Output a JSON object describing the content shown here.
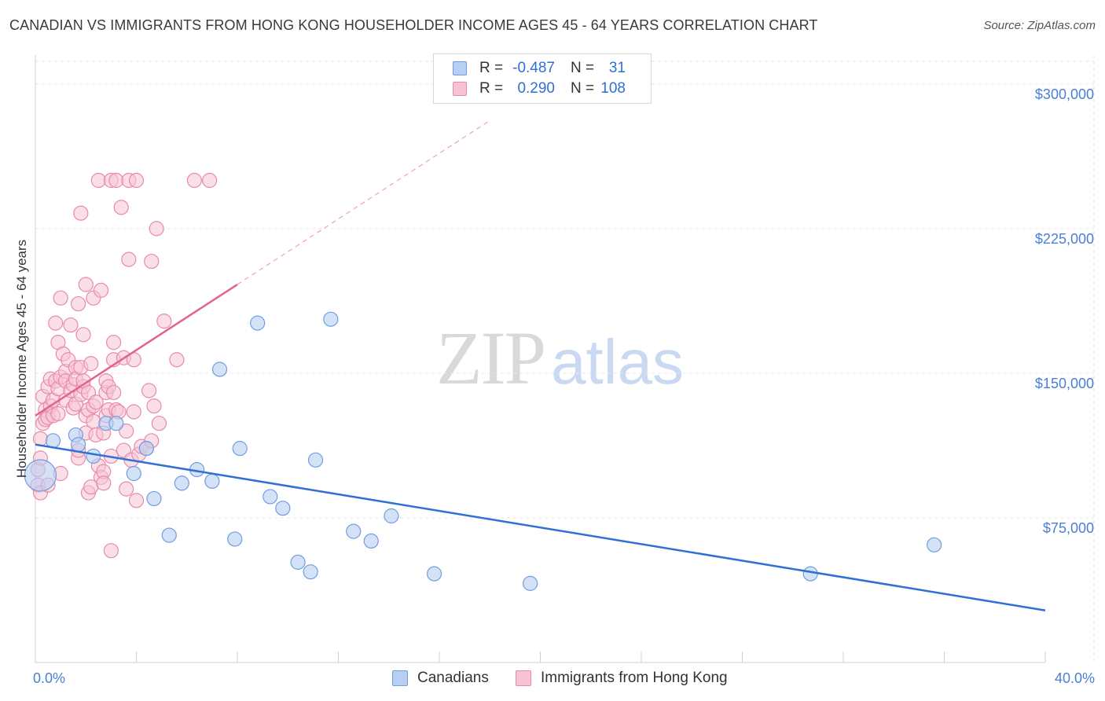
{
  "header": {
    "title": "CANADIAN VS IMMIGRANTS FROM HONG KONG HOUSEHOLDER INCOME AGES 45 - 64 YEARS CORRELATION CHART",
    "source": "Source: ZipAtlas.com"
  },
  "watermark": {
    "zip": "ZIP",
    "atlas": "atlas"
  },
  "legend": {
    "rows": [
      {
        "r_label": "R =",
        "r_value": "-0.487",
        "n_label": "N =",
        "n_value": "31"
      },
      {
        "r_label": "R =",
        "r_value": "0.290",
        "n_label": "N =",
        "n_value": "108"
      }
    ]
  },
  "bottom_legend": {
    "canadians": "Canadians",
    "hong_kong": "Immigrants from Hong Kong"
  },
  "colors": {
    "blue_fill": "#b7cff2",
    "blue_stroke": "#6f9de0",
    "blue_line": "#2f6fd6",
    "pink_fill": "#f6c4d4",
    "pink_stroke": "#e98aa9",
    "pink_line": "#e2638f",
    "grid": "#e6e6e6",
    "axis_text": "#4a7fd4"
  },
  "chart_data": {
    "type": "scatter",
    "title": "CANADIAN VS IMMIGRANTS FROM HONG KONG HOUSEHOLDER INCOME AGES 45 - 64 YEARS CORRELATION CHART",
    "xlabel": "",
    "ylabel": "Householder Income Ages 45 - 64 years",
    "xlim": [
      0,
      40
    ],
    "ylim": [
      0,
      315000
    ],
    "x_tick_labels": [
      "0.0%",
      "40.0%"
    ],
    "y_ticks": [
      75000,
      150000,
      225000,
      300000
    ],
    "y_tick_labels": [
      "$75,000",
      "$150,000",
      "$225,000",
      "$300,000"
    ],
    "grid": true,
    "legend_position": "top-center",
    "series": [
      {
        "name": "Canadians",
        "R": -0.487,
        "N": 31,
        "trend": {
          "x": [
            0,
            40
          ],
          "y": [
            113000,
            27000
          ]
        },
        "points": [
          {
            "x": 0.2,
            "y": 97000,
            "big": true
          },
          {
            "x": 0.7,
            "y": 115000
          },
          {
            "x": 1.6,
            "y": 118000
          },
          {
            "x": 1.7,
            "y": 113000
          },
          {
            "x": 2.3,
            "y": 107000
          },
          {
            "x": 2.8,
            "y": 124000
          },
          {
            "x": 3.2,
            "y": 124000
          },
          {
            "x": 3.9,
            "y": 98000
          },
          {
            "x": 4.4,
            "y": 111000
          },
          {
            "x": 4.7,
            "y": 85000
          },
          {
            "x": 5.3,
            "y": 66000
          },
          {
            "x": 5.8,
            "y": 93000
          },
          {
            "x": 6.4,
            "y": 100000
          },
          {
            "x": 7.0,
            "y": 94000
          },
          {
            "x": 7.3,
            "y": 152000
          },
          {
            "x": 7.9,
            "y": 64000
          },
          {
            "x": 8.1,
            "y": 111000
          },
          {
            "x": 8.8,
            "y": 176000
          },
          {
            "x": 9.3,
            "y": 86000
          },
          {
            "x": 9.8,
            "y": 80000
          },
          {
            "x": 10.4,
            "y": 52000
          },
          {
            "x": 10.9,
            "y": 47000
          },
          {
            "x": 11.1,
            "y": 105000
          },
          {
            "x": 11.7,
            "y": 178000
          },
          {
            "x": 12.6,
            "y": 68000
          },
          {
            "x": 13.3,
            "y": 63000
          },
          {
            "x": 14.1,
            "y": 76000
          },
          {
            "x": 15.8,
            "y": 46000
          },
          {
            "x": 19.6,
            "y": 41000
          },
          {
            "x": 30.7,
            "y": 46000
          },
          {
            "x": 35.6,
            "y": 61000
          }
        ]
      },
      {
        "name": "Immigrants from Hong Kong",
        "R": 0.29,
        "N": 108,
        "trend": {
          "x": [
            0,
            8.0
          ],
          "y": [
            128000,
            196000
          ]
        },
        "trend_dashed": {
          "x": [
            8.0,
            18.0
          ],
          "y": [
            196000,
            281000
          ]
        },
        "points": [
          {
            "x": 0.1,
            "y": 100000
          },
          {
            "x": 0.1,
            "y": 92000
          },
          {
            "x": 0.2,
            "y": 106000
          },
          {
            "x": 0.2,
            "y": 116000
          },
          {
            "x": 0.2,
            "y": 88000
          },
          {
            "x": 0.3,
            "y": 124000
          },
          {
            "x": 0.3,
            "y": 138000
          },
          {
            "x": 0.4,
            "y": 131000
          },
          {
            "x": 0.4,
            "y": 126000
          },
          {
            "x": 0.5,
            "y": 143000
          },
          {
            "x": 0.5,
            "y": 127000
          },
          {
            "x": 0.5,
            "y": 92000
          },
          {
            "x": 0.6,
            "y": 147000
          },
          {
            "x": 0.6,
            "y": 133000
          },
          {
            "x": 0.7,
            "y": 128000
          },
          {
            "x": 0.7,
            "y": 136000
          },
          {
            "x": 0.8,
            "y": 146000
          },
          {
            "x": 0.8,
            "y": 176000
          },
          {
            "x": 0.9,
            "y": 166000
          },
          {
            "x": 0.9,
            "y": 129000
          },
          {
            "x": 0.9,
            "y": 142000
          },
          {
            "x": 1.0,
            "y": 148000
          },
          {
            "x": 1.0,
            "y": 98000
          },
          {
            "x": 1.0,
            "y": 189000
          },
          {
            "x": 1.1,
            "y": 160000
          },
          {
            "x": 1.2,
            "y": 151000
          },
          {
            "x": 1.2,
            "y": 136000
          },
          {
            "x": 1.2,
            "y": 146000
          },
          {
            "x": 1.3,
            "y": 157000
          },
          {
            "x": 1.4,
            "y": 141000
          },
          {
            "x": 1.4,
            "y": 175000
          },
          {
            "x": 1.5,
            "y": 144000
          },
          {
            "x": 1.5,
            "y": 132000
          },
          {
            "x": 1.6,
            "y": 153000
          },
          {
            "x": 1.6,
            "y": 147000
          },
          {
            "x": 1.6,
            "y": 134000
          },
          {
            "x": 1.7,
            "y": 106000
          },
          {
            "x": 1.7,
            "y": 110000
          },
          {
            "x": 1.7,
            "y": 186000
          },
          {
            "x": 1.8,
            "y": 233000
          },
          {
            "x": 1.8,
            "y": 153000
          },
          {
            "x": 1.8,
            "y": 139000
          },
          {
            "x": 1.9,
            "y": 143000
          },
          {
            "x": 1.9,
            "y": 146000
          },
          {
            "x": 1.9,
            "y": 170000
          },
          {
            "x": 2.0,
            "y": 119000
          },
          {
            "x": 2.0,
            "y": 128000
          },
          {
            "x": 2.0,
            "y": 196000
          },
          {
            "x": 2.1,
            "y": 131000
          },
          {
            "x": 2.1,
            "y": 140000
          },
          {
            "x": 2.1,
            "y": 88000
          },
          {
            "x": 2.2,
            "y": 91000
          },
          {
            "x": 2.2,
            "y": 155000
          },
          {
            "x": 2.3,
            "y": 125000
          },
          {
            "x": 2.3,
            "y": 133000
          },
          {
            "x": 2.3,
            "y": 189000
          },
          {
            "x": 2.4,
            "y": 118000
          },
          {
            "x": 2.4,
            "y": 135000
          },
          {
            "x": 2.5,
            "y": 250000
          },
          {
            "x": 2.5,
            "y": 102000
          },
          {
            "x": 2.6,
            "y": 96000
          },
          {
            "x": 2.6,
            "y": 193000
          },
          {
            "x": 2.7,
            "y": 99000
          },
          {
            "x": 2.7,
            "y": 93000
          },
          {
            "x": 2.7,
            "y": 119000
          },
          {
            "x": 2.8,
            "y": 140000
          },
          {
            "x": 2.8,
            "y": 128000
          },
          {
            "x": 2.8,
            "y": 146000
          },
          {
            "x": 2.9,
            "y": 131000
          },
          {
            "x": 2.9,
            "y": 143000
          },
          {
            "x": 3.0,
            "y": 250000
          },
          {
            "x": 3.0,
            "y": 58000
          },
          {
            "x": 3.0,
            "y": 107000
          },
          {
            "x": 3.1,
            "y": 157000
          },
          {
            "x": 3.1,
            "y": 166000
          },
          {
            "x": 3.2,
            "y": 131000
          },
          {
            "x": 3.2,
            "y": 250000
          },
          {
            "x": 3.3,
            "y": 130000
          },
          {
            "x": 3.4,
            "y": 236000
          },
          {
            "x": 3.5,
            "y": 158000
          },
          {
            "x": 3.5,
            "y": 110000
          },
          {
            "x": 3.6,
            "y": 120000
          },
          {
            "x": 3.6,
            "y": 90000
          },
          {
            "x": 3.7,
            "y": 209000
          },
          {
            "x": 3.7,
            "y": 250000
          },
          {
            "x": 3.8,
            "y": 105000
          },
          {
            "x": 3.9,
            "y": 157000
          },
          {
            "x": 3.9,
            "y": 130000
          },
          {
            "x": 4.0,
            "y": 250000
          },
          {
            "x": 4.0,
            "y": 84000
          },
          {
            "x": 4.1,
            "y": 108000
          },
          {
            "x": 4.2,
            "y": 112000
          },
          {
            "x": 4.4,
            "y": 111000
          },
          {
            "x": 4.5,
            "y": 141000
          },
          {
            "x": 4.6,
            "y": 208000
          },
          {
            "x": 4.6,
            "y": 115000
          },
          {
            "x": 4.7,
            "y": 133000
          },
          {
            "x": 4.8,
            "y": 225000
          },
          {
            "x": 4.9,
            "y": 124000
          },
          {
            "x": 5.1,
            "y": 177000
          },
          {
            "x": 5.6,
            "y": 157000
          },
          {
            "x": 6.3,
            "y": 250000
          },
          {
            "x": 6.9,
            "y": 250000
          },
          {
            "x": 3.1,
            "y": 140000
          }
        ]
      }
    ]
  }
}
